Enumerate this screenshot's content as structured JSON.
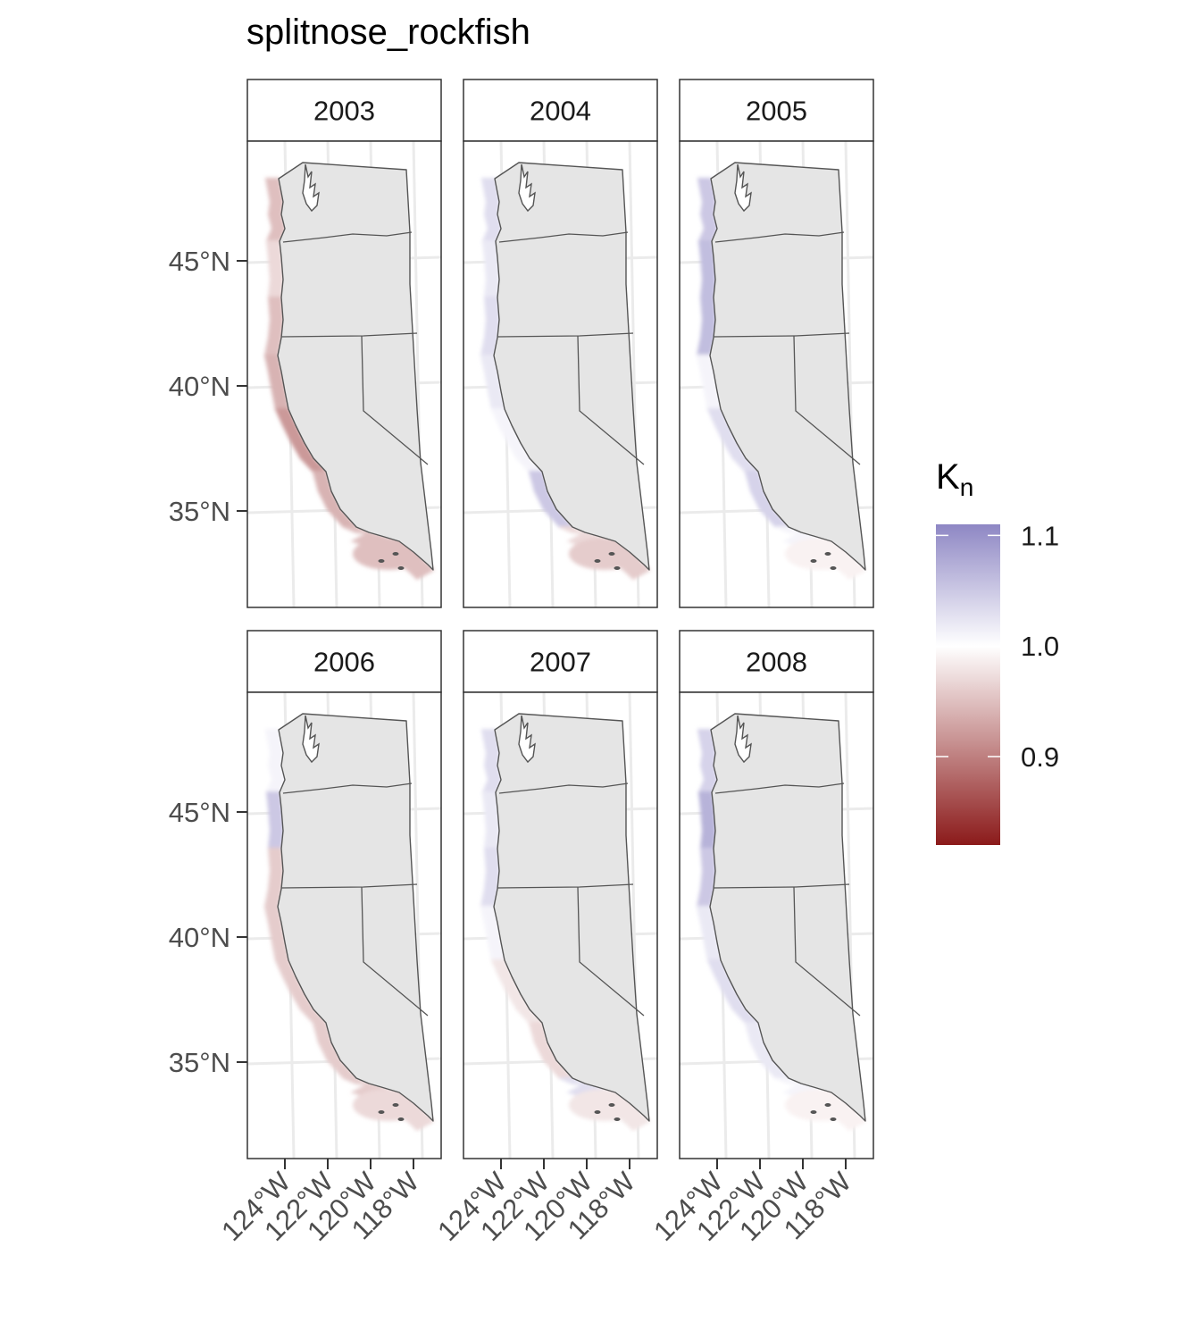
{
  "title": "splitnose_rockfish",
  "panels": [
    {
      "year": "2003",
      "pattern": [
        0.95,
        0.97,
        0.95,
        0.94,
        0.92,
        0.94,
        0.95,
        0.95
      ]
    },
    {
      "year": "2004",
      "pattern": [
        1.03,
        1.02,
        1.03,
        1.02,
        1.01,
        1.05,
        0.97,
        0.96
      ]
    },
    {
      "year": "2005",
      "pattern": [
        1.05,
        1.06,
        1.06,
        1.01,
        1.03,
        1.04,
        1.01,
        0.99
      ]
    },
    {
      "year": "2006",
      "pattern": [
        1.01,
        1.05,
        0.96,
        0.96,
        0.96,
        0.96,
        0.96,
        0.97
      ]
    },
    {
      "year": "2007",
      "pattern": [
        1.03,
        1.02,
        1.03,
        1.01,
        0.98,
        0.97,
        1.03,
        0.98
      ]
    },
    {
      "year": "2008",
      "pattern": [
        1.04,
        1.07,
        1.05,
        1.02,
        1.03,
        1.02,
        1.01,
        0.99
      ]
    }
  ],
  "y_ticks": [
    "45°N",
    "40°N",
    "35°N"
  ],
  "x_ticks": [
    "124°W",
    "122°W",
    "120°W",
    "118°W"
  ],
  "legend": {
    "title": "K",
    "title_sub": "n",
    "ticks": [
      {
        "label": "1.1",
        "value": 1.1
      },
      {
        "label": "1.0",
        "value": 1.0
      },
      {
        "label": "0.9",
        "value": 0.9
      }
    ],
    "range": [
      0.82,
      1.11
    ],
    "colors": {
      "low": "#8b1a1a",
      "mid": "#ffffff",
      "high": "#8e87c4"
    }
  },
  "colors": {
    "land": "#e5e5e5",
    "border": "#555555",
    "grid": "#ebebeb",
    "panel_border": "#333333"
  }
}
